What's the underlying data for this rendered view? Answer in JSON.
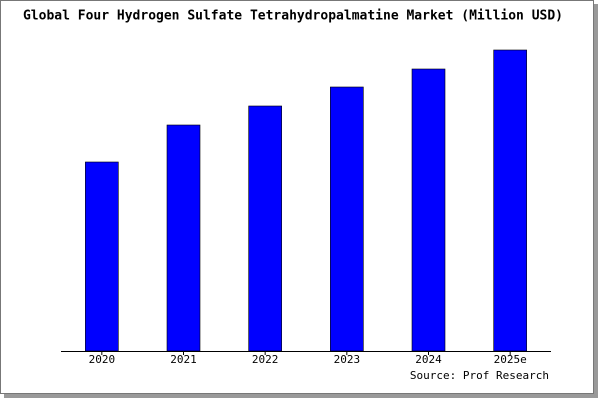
{
  "chart_data": {
    "type": "bar",
    "title": "Global Four Hydrogen Sulfate Tetrahydropalmatine Market (Million USD)",
    "categories": [
      "2020",
      "2021",
      "2022",
      "2023",
      "2024",
      "2025e"
    ],
    "values": [
      189,
      226,
      245,
      264,
      282,
      301
    ],
    "color": "#0000ff",
    "ylim": [
      0,
      306
    ],
    "source": "Source: Prof Research"
  }
}
